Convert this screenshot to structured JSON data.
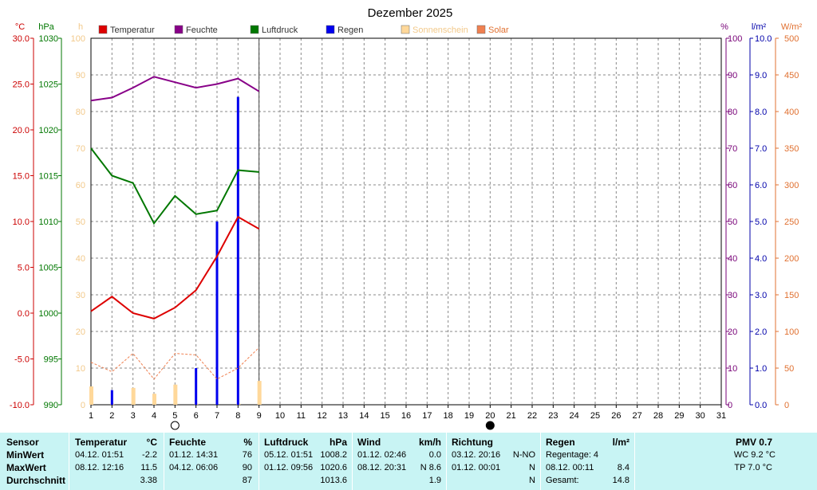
{
  "chart_data": {
    "type": "line",
    "title": "Dezember 2025",
    "x": [
      1,
      2,
      3,
      4,
      5,
      6,
      7,
      8,
      9
    ],
    "x_ticks": [
      "1",
      "2",
      "3",
      "4",
      "5",
      "6",
      "7",
      "8",
      "9",
      "10",
      "11",
      "12",
      "13",
      "14",
      "15",
      "16",
      "17",
      "18",
      "19",
      "20",
      "21",
      "22",
      "23",
      "24",
      "25",
      "26",
      "27",
      "28",
      "29",
      "30",
      "31"
    ],
    "axes": {
      "temp": {
        "unit": "°C",
        "ticks": [
          "30.0",
          "25.0",
          "20.0",
          "15.0",
          "10.0",
          "5.0",
          "0.0",
          "-5.0",
          "-10.0"
        ],
        "range": [
          -10,
          30
        ],
        "color": "#cc0000"
      },
      "pressure": {
        "unit": "hPa",
        "ticks": [
          "1030",
          "1025",
          "1020",
          "1015",
          "1010",
          "1005",
          "1000",
          "995",
          "990"
        ],
        "range": [
          990,
          1030
        ],
        "color": "#007700"
      },
      "sunshine": {
        "unit": "h",
        "ticks": [
          "100",
          "90",
          "80",
          "70",
          "60",
          "50",
          "40",
          "30",
          "20",
          "10",
          "0"
        ],
        "range": [
          0,
          100
        ],
        "color": "#f2c98a"
      },
      "humidity": {
        "unit": "%",
        "ticks": [
          "100",
          "90",
          "80",
          "70",
          "60",
          "50",
          "40",
          "30",
          "20",
          "10",
          "0"
        ],
        "range": [
          0,
          100
        ],
        "color": "#770077"
      },
      "rain": {
        "unit": "l/m²",
        "ticks": [
          "10.0",
          "9.0",
          "8.0",
          "7.0",
          "6.0",
          "5.0",
          "4.0",
          "3.0",
          "2.0",
          "1.0",
          "0.0"
        ],
        "range": [
          0,
          10
        ],
        "color": "#0000aa"
      },
      "solar": {
        "unit": "W/m²",
        "ticks": [
          "500",
          "450",
          "400",
          "350",
          "300",
          "250",
          "200",
          "150",
          "100",
          "50",
          "0"
        ],
        "range": [
          0,
          500
        ],
        "color": "#e07030"
      }
    },
    "legend": [
      {
        "name": "Temperatur",
        "color": "#dd0000"
      },
      {
        "name": "Feuchte",
        "color": "#880088"
      },
      {
        "name": "Luftdruck",
        "color": "#007700"
      },
      {
        "name": "Regen",
        "color": "#0000ee"
      },
      {
        "name": "Sonnenschein",
        "color": "#ffd89a"
      },
      {
        "name": "Solar",
        "color": "#f08050"
      }
    ],
    "series": [
      {
        "name": "Temperatur",
        "axis": "temp",
        "color": "#dd0000",
        "values": [
          0.2,
          1.8,
          0.0,
          -0.6,
          0.6,
          2.5,
          6.2,
          10.5,
          9.2
        ]
      },
      {
        "name": "Feuchte",
        "axis": "humidity",
        "color": "#880088",
        "values": [
          83,
          83.8,
          86.5,
          89.5,
          88,
          86.5,
          87.5,
          89,
          85.5
        ]
      },
      {
        "name": "Luftdruck",
        "axis": "pressure",
        "color": "#007700",
        "values": [
          1018.0,
          1015.0,
          1014.2,
          1009.8,
          1012.8,
          1010.8,
          1011.2,
          1015.6,
          1015.4
        ]
      },
      {
        "name": "Solar",
        "axis": "solar",
        "color": "#f08050",
        "values": [
          58,
          45,
          70,
          35,
          70,
          68,
          35,
          50,
          78
        ]
      }
    ],
    "rain": {
      "name": "Regen",
      "axis": "rain",
      "color": "#0000ee",
      "values": [
        0,
        0.4,
        0,
        0,
        0,
        1.0,
        5.0,
        8.4,
        0
      ]
    },
    "sunshine": {
      "name": "Sonnenschein",
      "axis": "sunshine",
      "color": "#ffd89a",
      "values": [
        5,
        0.3,
        4.6,
        3.0,
        5.5,
        0.3,
        0,
        0.3,
        6.5
      ]
    },
    "moon": [
      {
        "day": 5,
        "phase": "full"
      },
      {
        "day": 20,
        "phase": "new"
      }
    ],
    "grid": true
  },
  "stats": {
    "sensor": {
      "title": "Sensor",
      "rows": [
        "MinWert",
        "MaxWert",
        "Durchschnitt"
      ]
    },
    "temperatur": {
      "title": "Temperatur",
      "unit": "°C",
      "min_time": "04.12.  01:51",
      "min": "-2.2",
      "max_time": "08.12.  12:16",
      "max": "11.5",
      "avg": "3.38"
    },
    "feuchte": {
      "title": "Feuchte",
      "unit": "%",
      "min_time": "01.12.  14:31",
      "min": "76",
      "max_time": "04.12.  06:06",
      "max": "90",
      "avg": "87"
    },
    "luftdruck": {
      "title": "Luftdruck",
      "unit": "hPa",
      "min_time": "05.12.  01:51",
      "min": "1008.2",
      "max_time": "01.12.  09:56",
      "max": "1020.6",
      "avg": "1013.6"
    },
    "wind": {
      "title": "Wind",
      "unit": "km/h",
      "min_time": "01.12.  02:46",
      "min": "0.0",
      "max_time": "08.12.  20:31",
      "max": "N  8.6",
      "avg": "1.9"
    },
    "richtung": {
      "title": "Richtung",
      "min_time": "03.12.  20:16",
      "min": "N-NO",
      "max_time": "01.12.  00:01",
      "max": "N",
      "avg": "N"
    },
    "regen": {
      "title": "Regen",
      "unit": "l/m²",
      "row1": "Regentage: 4",
      "row2_time": "08.12.  00:11",
      "row2": "8.4",
      "row3_label": "Gesamt:",
      "row3": "14.8"
    },
    "pmv": {
      "title": "PMV 0.7",
      "wc": "WC 9.2 °C",
      "tp": "TP 7.0 °C"
    }
  }
}
